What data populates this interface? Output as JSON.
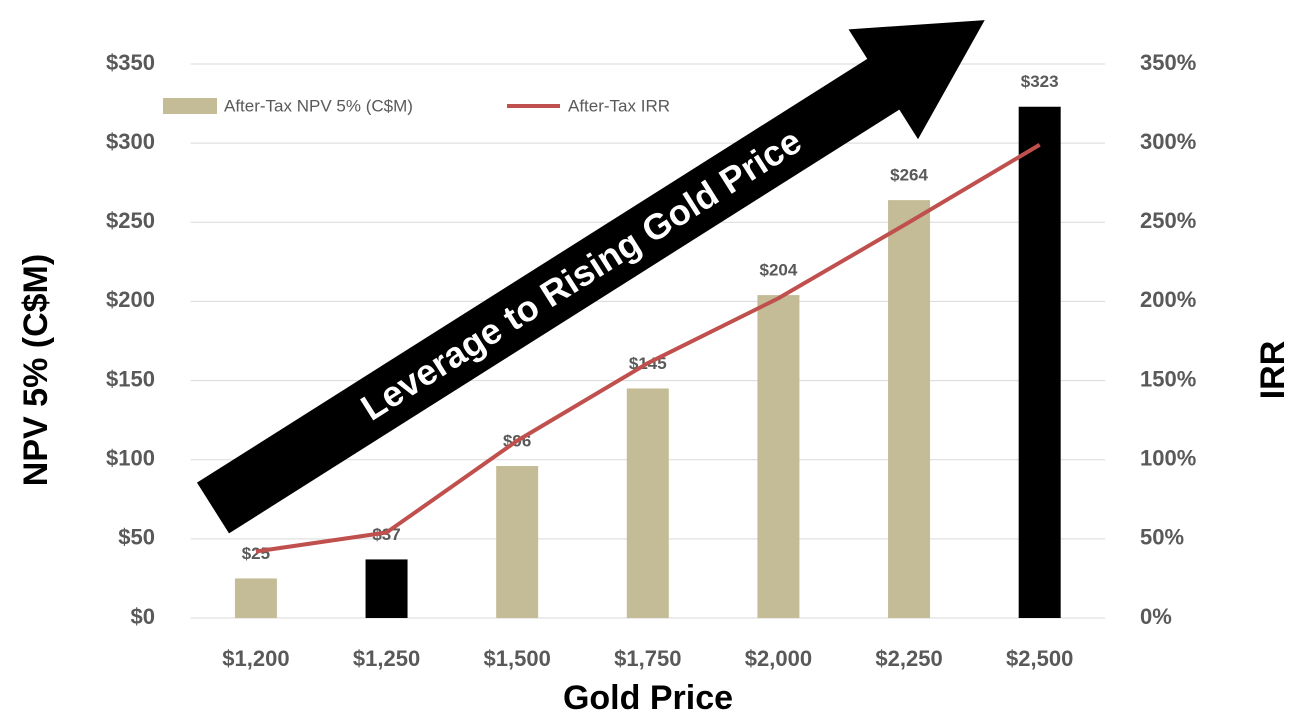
{
  "chart_data": {
    "type": "bar",
    "annotation": "Leverage to Rising Gold Price",
    "xlabel": "Gold Price",
    "ylabel": "NPV 5% (C$M)",
    "y2label": "IRR",
    "categories": [
      "$1,200",
      "$1,250",
      "$1,500",
      "$1,750",
      "$2,000",
      "$2,250",
      "$2,500"
    ],
    "series": [
      {
        "name": "After-Tax NPV 5% (C$M)",
        "type": "bar",
        "color": "#c4bc96",
        "colors": [
          "#c4bc96",
          "#000000",
          "#c4bc96",
          "#c4bc96",
          "#c4bc96",
          "#c4bc96",
          "#000000"
        ],
        "values": [
          25,
          37,
          96,
          145,
          204,
          264,
          323
        ],
        "value_labels": [
          "$25",
          "$37",
          "$96",
          "$145",
          "$204",
          "$264",
          "$323"
        ]
      },
      {
        "name": "After-Tax IRR",
        "type": "line",
        "axis": "y2",
        "color": "#c0504d",
        "values": [
          42,
          54,
          112,
          161,
          202,
          250,
          299
        ]
      }
    ],
    "ylim": [
      0,
      350
    ],
    "yticks": [
      {
        "value": 0,
        "label": "$0"
      },
      {
        "value": 50,
        "label": "$50"
      },
      {
        "value": 100,
        "label": "$100"
      },
      {
        "value": 150,
        "label": "$150"
      },
      {
        "value": 200,
        "label": "$200"
      },
      {
        "value": 250,
        "label": "$250"
      },
      {
        "value": 300,
        "label": "$300"
      },
      {
        "value": 350,
        "label": "$350"
      }
    ],
    "y2lim": [
      0,
      350
    ],
    "y2ticks": [
      {
        "value": 0,
        "label": "0%"
      },
      {
        "value": 50,
        "label": "50%"
      },
      {
        "value": 100,
        "label": "100%"
      },
      {
        "value": 150,
        "label": "150%"
      },
      {
        "value": 200,
        "label": "200%"
      },
      {
        "value": 250,
        "label": "250%"
      },
      {
        "value": 300,
        "label": "300%"
      },
      {
        "value": 350,
        "label": "350%"
      }
    ],
    "grid": true,
    "legend": "top-left"
  }
}
